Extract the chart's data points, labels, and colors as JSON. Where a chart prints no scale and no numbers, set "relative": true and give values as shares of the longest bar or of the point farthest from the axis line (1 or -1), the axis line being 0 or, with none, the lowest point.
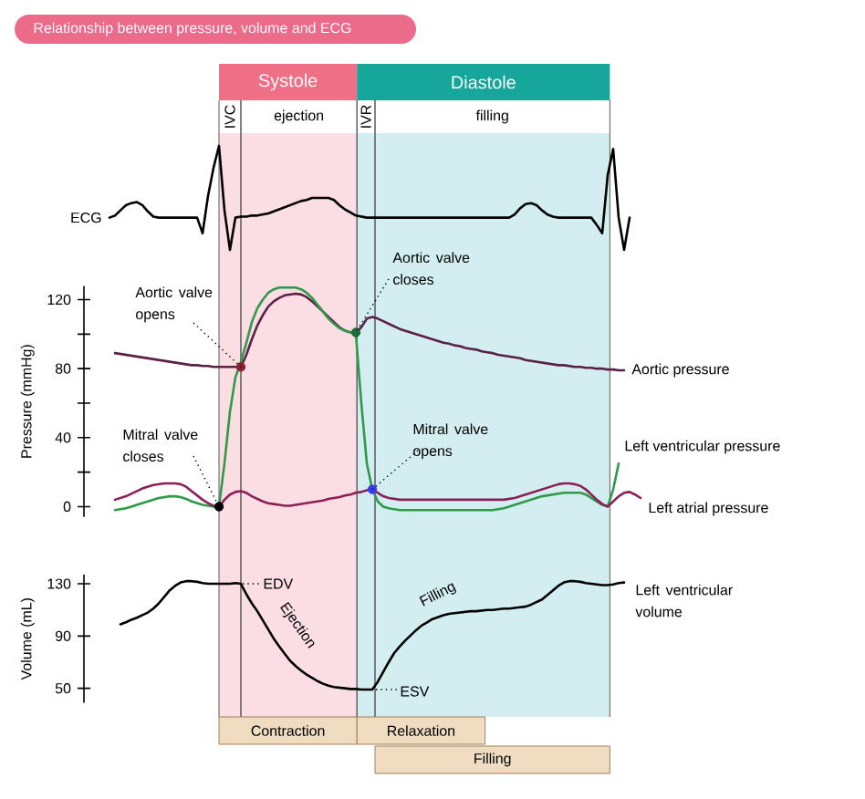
{
  "chart_data": [
    {
      "type": "line",
      "title": "Relationship between pressure, volume and ECG",
      "relative": true,
      "tick_labels": false,
      "categories": [
        null,
        null,
        null,
        null,
        null,
        null,
        null,
        null,
        null,
        null,
        null,
        null,
        null,
        null,
        null,
        null,
        null,
        null,
        null,
        null,
        null,
        null,
        null,
        null,
        null,
        null,
        null,
        null,
        null,
        null,
        null,
        null,
        null,
        null,
        null,
        null,
        null,
        null,
        null,
        null,
        null,
        null,
        null,
        null,
        null,
        null,
        null,
        null,
        null,
        null,
        null,
        null,
        null,
        null,
        null,
        null,
        null,
        null,
        null,
        null,
        null,
        null,
        null,
        null,
        null,
        null,
        null,
        null,
        null,
        null,
        null,
        null,
        null,
        null,
        null,
        null,
        null,
        null,
        null,
        null,
        null,
        null,
        null,
        null,
        null,
        null,
        null,
        null,
        null,
        null,
        null,
        null,
        null,
        null,
        null,
        null,
        null,
        null
      ],
      "series": [
        {
          "name": "ECG",
          "color": "#000000",
          "values": [
            0.31,
            0.33,
            0.38,
            0.43,
            0.45,
            0.46,
            0.43,
            0.37,
            0.32,
            0.31,
            0.31,
            0.31,
            0.31,
            0.31,
            0.31,
            0.31,
            0.31,
            0.16,
            0.52,
            0.79,
            1,
            0.38,
            0,
            0.31,
            0.32,
            0.32,
            0.33,
            0.33,
            0.34,
            0.35,
            0.37,
            0.39,
            0.41,
            0.43,
            0.45,
            0.47,
            0.48,
            0.5,
            0.5,
            0.5,
            0.5,
            0.48,
            0.43,
            0.39,
            0.36,
            0.33,
            0.32,
            0.31,
            0.31,
            0.31,
            0.31,
            0.31,
            0.31,
            0.31,
            0.31,
            0.31,
            0.31,
            0.31,
            0.31,
            0.31,
            0.31,
            0.31,
            0.31,
            0.31,
            0.31,
            0.31,
            0.31,
            0.31,
            0.31,
            0.31,
            0.31,
            0.31,
            0.31,
            0.31,
            0.34,
            0.4,
            0.44,
            0.45,
            0.43,
            0.38,
            0.34,
            0.32,
            0.31,
            0.31,
            0.31,
            0.31,
            0.31,
            0.31,
            0.31,
            0.24,
            0.16,
            0.72,
            0.97,
            0.31,
            0,
            0.31,
            null,
            null
          ]
        }
      ],
      "annotations": [
        "Systole",
        "Diastole",
        "IVC",
        "ejection",
        "IVR",
        "filling"
      ]
    },
    {
      "type": "line",
      "ylabel": "Pressure (mmHg)",
      "ylim": [
        -6,
        128
      ],
      "tick_labels": "y",
      "yticks": [
        0,
        {
          "value": 20,
          "label": null
        },
        40,
        {
          "value": 60,
          "label": null
        },
        80,
        {
          "value": 100,
          "label": null
        },
        120
      ],
      "categories": [
        null,
        null,
        null,
        null,
        null,
        null,
        null,
        null,
        null,
        null,
        null,
        null,
        null,
        null,
        null,
        null,
        null,
        null,
        null,
        null,
        null,
        null,
        null,
        null,
        null,
        null,
        null,
        null,
        null,
        null,
        null,
        null,
        null,
        null,
        null,
        null,
        null,
        null,
        null,
        null,
        null,
        null,
        null,
        null,
        null,
        null,
        null,
        null,
        null,
        null,
        null,
        null,
        null,
        null,
        null,
        null,
        null,
        null,
        null,
        null,
        null,
        null,
        null,
        null,
        null,
        null,
        null,
        null,
        null,
        null,
        null,
        null,
        null,
        null,
        null,
        null,
        null,
        null,
        null,
        null,
        null,
        null,
        null,
        null,
        null,
        null,
        null,
        null,
        null,
        null,
        null,
        null,
        null,
        null,
        null,
        null,
        null,
        null
      ],
      "series": [
        {
          "name": "Aortic pressure",
          "color": "#5b2045",
          "values": [
            null,
            89,
            88.5,
            88,
            87.5,
            87,
            86.5,
            86,
            85.5,
            85,
            84.5,
            84,
            83.5,
            83,
            82.5,
            82,
            82,
            81.5,
            81.5,
            81,
            81,
            81,
            81,
            81,
            81,
            88,
            97,
            105,
            111,
            116,
            119,
            121,
            122.5,
            123,
            123.5,
            123,
            121.5,
            119,
            116,
            113,
            110,
            107,
            104,
            102,
            101,
            101,
            104,
            109,
            110,
            109,
            107.5,
            106,
            104.5,
            103,
            102,
            101,
            100,
            99,
            98,
            97,
            96,
            95,
            94.5,
            93.5,
            93,
            92,
            91.5,
            91,
            90,
            89.5,
            89,
            88,
            87.5,
            87,
            86.5,
            86,
            85,
            84.5,
            84,
            83.5,
            83,
            82.5,
            82,
            82,
            81.5,
            81,
            81,
            80.5,
            80.5,
            80,
            80,
            79.5,
            79.5,
            79,
            79,
            null,
            null,
            null
          ]
        },
        {
          "name": "Left ventricular pressure",
          "color": "#2e9a48",
          "values": [
            null,
            -2,
            -1.5,
            -1,
            0,
            1,
            2,
            3,
            4,
            5,
            5.5,
            6,
            6,
            5.5,
            4.5,
            3,
            2,
            1,
            0.5,
            0,
            0,
            25,
            55,
            75,
            84,
            95,
            107,
            115,
            120,
            124,
            126,
            127,
            127,
            127,
            127,
            126,
            124,
            121,
            117,
            113,
            109,
            106,
            103.5,
            102,
            101,
            100,
            60,
            25,
            10,
            3,
            0,
            -1,
            -1.5,
            -2,
            -2,
            -2,
            -2,
            -2,
            -2,
            -2,
            -2,
            -2,
            -2,
            -2,
            -2,
            -2,
            -2,
            -2,
            -2,
            -2,
            -2,
            -1.5,
            -1,
            0,
            1,
            2,
            3,
            4,
            5,
            6,
            6.5,
            7,
            7.5,
            8,
            8,
            8,
            8,
            7,
            5,
            3,
            1,
            0,
            10,
            25,
            null,
            null,
            null,
            null
          ]
        },
        {
          "name": "Left atrial pressure",
          "color": "#8c1f55",
          "values": [
            null,
            4,
            5,
            6,
            7.5,
            9,
            10.5,
            11.5,
            12.5,
            13,
            13.5,
            13.5,
            13.5,
            13,
            11.5,
            9,
            6.5,
            4,
            2,
            0.5,
            0,
            4,
            7,
            8.5,
            9,
            8,
            6,
            4.5,
            3,
            2,
            1.5,
            1,
            0.5,
            0.5,
            1,
            1.5,
            2,
            2.5,
            3,
            3.5,
            4.5,
            5,
            5.5,
            6.5,
            7,
            8,
            8.5,
            9.5,
            10,
            8,
            6,
            5,
            4.5,
            4,
            4,
            4,
            4,
            4,
            4,
            4,
            4,
            4,
            4,
            4,
            4,
            4,
            4,
            4,
            4,
            4,
            4,
            4,
            4,
            4.5,
            5,
            6,
            7,
            8,
            9,
            10,
            11,
            12,
            13,
            13.5,
            13.5,
            13,
            12,
            10,
            7,
            4,
            1.5,
            0,
            3,
            6,
            8,
            8.5,
            7,
            5
          ]
        },
        {
          "type": "scatter",
          "color": "#8b1f2f",
          "values": [
            null,
            null,
            null,
            null,
            null,
            null,
            null,
            null,
            null,
            null,
            null,
            null,
            null,
            null,
            null,
            null,
            null,
            null,
            null,
            null,
            null,
            null,
            null,
            null,
            81,
            null,
            null,
            null,
            null,
            null,
            null,
            null,
            null,
            null,
            null,
            null,
            null,
            null,
            null,
            null,
            null,
            null,
            null,
            null,
            null,
            null,
            null,
            null,
            null,
            null,
            null,
            null,
            null,
            null,
            null,
            null,
            null,
            null,
            null,
            null,
            null,
            null,
            null,
            null,
            null,
            null,
            null,
            null,
            null,
            null,
            null,
            null,
            null,
            null,
            null,
            null,
            null,
            null,
            null,
            null,
            null,
            null,
            null,
            null,
            null,
            null,
            null,
            null,
            null,
            null,
            null,
            null,
            null,
            null,
            null,
            null,
            null,
            null
          ]
        },
        {
          "type": "scatter",
          "color": "#1f6b35",
          "values": [
            null,
            null,
            null,
            null,
            null,
            null,
            null,
            null,
            null,
            null,
            null,
            null,
            null,
            null,
            null,
            null,
            null,
            null,
            null,
            null,
            null,
            null,
            null,
            null,
            null,
            null,
            null,
            null,
            null,
            null,
            null,
            null,
            null,
            null,
            null,
            null,
            null,
            null,
            null,
            null,
            null,
            null,
            null,
            null,
            null,
            101,
            null,
            null,
            null,
            null,
            null,
            null,
            null,
            null,
            null,
            null,
            null,
            null,
            null,
            null,
            null,
            null,
            null,
            null,
            null,
            null,
            null,
            null,
            null,
            null,
            null,
            null,
            null,
            null,
            null,
            null,
            null,
            null,
            null,
            null,
            null,
            null,
            null,
            null,
            null,
            null,
            null,
            null,
            null,
            null,
            null,
            null,
            null,
            null,
            null,
            null,
            null,
            null
          ]
        },
        {
          "type": "scatter",
          "color": "#000000",
          "values": [
            null,
            null,
            null,
            null,
            null,
            null,
            null,
            null,
            null,
            null,
            null,
            null,
            null,
            null,
            null,
            null,
            null,
            null,
            null,
            null,
            0,
            null,
            null,
            null,
            null,
            null,
            null,
            null,
            null,
            null,
            null,
            null,
            null,
            null,
            null,
            null,
            null,
            null,
            null,
            null,
            null,
            null,
            null,
            null,
            null,
            null,
            null,
            null,
            null,
            null,
            null,
            null,
            null,
            null,
            null,
            null,
            null,
            null,
            null,
            null,
            null,
            null,
            null,
            null,
            null,
            null,
            null,
            null,
            null,
            null,
            null,
            null,
            null,
            null,
            null,
            null,
            null,
            null,
            null,
            null,
            null,
            null,
            null,
            null,
            null,
            null,
            null,
            null,
            null,
            null,
            null,
            null,
            null,
            null,
            null,
            null,
            null,
            null
          ]
        },
        {
          "type": "scatter",
          "color": "#3a3af0",
          "values": [
            null,
            null,
            null,
            null,
            null,
            null,
            null,
            null,
            null,
            null,
            null,
            null,
            null,
            null,
            null,
            null,
            null,
            null,
            null,
            null,
            null,
            null,
            null,
            null,
            null,
            null,
            null,
            null,
            null,
            null,
            null,
            null,
            null,
            null,
            null,
            null,
            null,
            null,
            null,
            null,
            null,
            null,
            null,
            null,
            null,
            null,
            null,
            null,
            10,
            null,
            null,
            null,
            null,
            null,
            null,
            null,
            null,
            null,
            null,
            null,
            null,
            null,
            null,
            null,
            null,
            null,
            null,
            null,
            null,
            null,
            null,
            null,
            null,
            null,
            null,
            null,
            null,
            null,
            null,
            null,
            null,
            null,
            null,
            null,
            null,
            null,
            null,
            null,
            null,
            null,
            null,
            null,
            null,
            null,
            null,
            null,
            null,
            null
          ]
        }
      ],
      "annotations": [
        "Aortic valve opens",
        "Aortic valve closes",
        "Mitral valve closes",
        "Mitral valve opens"
      ]
    },
    {
      "type": "line",
      "ylabel": "Volume (mL)",
      "ylim": [
        39,
        137
      ],
      "tick_labels": "y",
      "yticks": [
        50,
        90,
        130
      ],
      "categories": [
        null,
        null,
        null,
        null,
        null,
        null,
        null,
        null,
        null,
        null,
        null,
        null,
        null,
        null,
        null,
        null,
        null,
        null,
        null,
        null,
        null,
        null,
        null,
        null,
        null,
        null,
        null,
        null,
        null,
        null,
        null,
        null,
        null,
        null,
        null,
        null,
        null,
        null,
        null,
        null,
        null,
        null,
        null,
        null,
        null,
        null,
        null,
        null,
        null,
        null,
        null,
        null,
        null,
        null,
        null,
        null,
        null,
        null,
        null,
        null,
        null,
        null,
        null,
        null,
        null,
        null,
        null,
        null,
        null,
        null,
        null,
        null,
        null,
        null,
        null,
        null,
        null,
        null,
        null,
        null,
        null,
        null,
        null,
        null,
        null,
        null,
        null,
        null,
        null,
        null,
        null,
        null,
        null,
        null,
        null,
        null,
        null,
        null
      ],
      "series": [
        {
          "name": "Left ventricular volume",
          "color": "#000000",
          "values": [
            null,
            null,
            99,
            100.5,
            102.5,
            104,
            106,
            108,
            111,
            115,
            120,
            125,
            128.5,
            131,
            132,
            132,
            131.5,
            130.5,
            130,
            130,
            130,
            130,
            130,
            130.5,
            130,
            122,
            115,
            109,
            102,
            95,
            88,
            82,
            76.5,
            71,
            67,
            63.5,
            60.5,
            58,
            55.5,
            53.5,
            52,
            51,
            50.5,
            50,
            49.5,
            49.5,
            49,
            49,
            49,
            55,
            62.5,
            70,
            77,
            82,
            86.5,
            90.5,
            94.5,
            98,
            100.5,
            103,
            104.5,
            106,
            107,
            107.5,
            108,
            108.5,
            109,
            109,
            109.5,
            110,
            110,
            110.5,
            111,
            111,
            111.5,
            112,
            112.5,
            114,
            116,
            118,
            121.5,
            125,
            128.5,
            131,
            132,
            132,
            131.5,
            130.5,
            130,
            129.5,
            129,
            129,
            129.5,
            130.5,
            131,
            null,
            null,
            null
          ]
        }
      ],
      "annotations": [
        "EDV",
        "ESV",
        "Ejection",
        "Filling",
        "Contraction",
        "Relaxation",
        "Filling"
      ]
    }
  ]
}
